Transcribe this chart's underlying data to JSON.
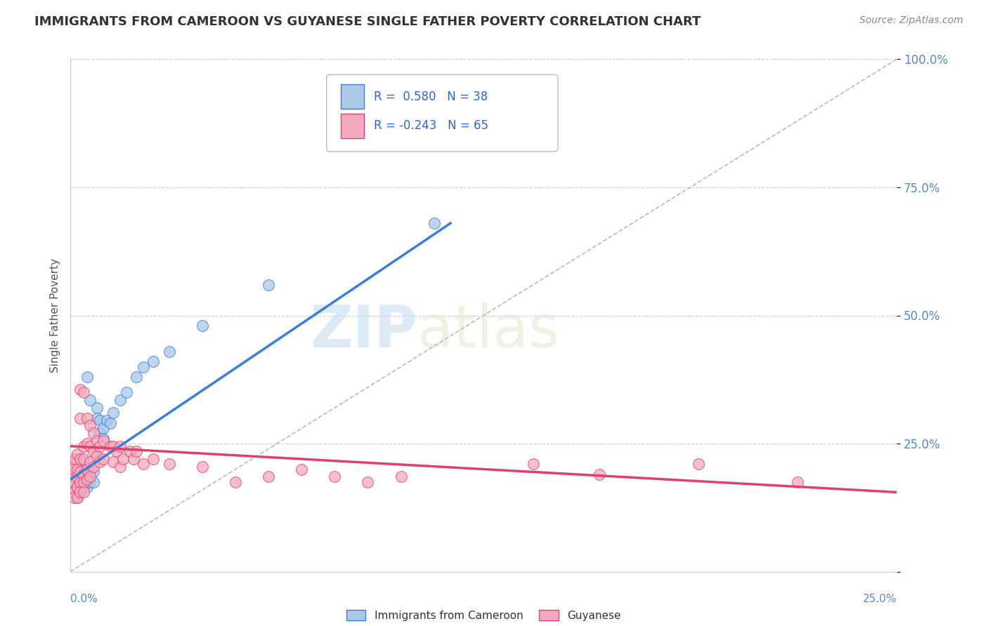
{
  "title": "IMMIGRANTS FROM CAMEROON VS GUYANESE SINGLE FATHER POVERTY CORRELATION CHART",
  "source": "Source: ZipAtlas.com",
  "ylabel": "Single Father Poverty",
  "yticks": [
    0.0,
    0.25,
    0.5,
    0.75,
    1.0
  ],
  "ytick_labels": [
    "",
    "25.0%",
    "50.0%",
    "75.0%",
    "100.0%"
  ],
  "xlim": [
    0.0,
    0.25
  ],
  "ylim": [
    0.0,
    1.0
  ],
  "R_cameroon": 0.58,
  "N_cameroon": 38,
  "R_guyanese": -0.243,
  "N_guyanese": 65,
  "color_cameroon": "#aac8e8",
  "color_guyanese": "#f4aabe",
  "line_color_cameroon": "#3a7fd5",
  "line_color_guyanese": "#e0406a",
  "legend_label_cameroon": "Immigrants from Cameroon",
  "legend_label_guyanese": "Guyanese",
  "cameroon_points": [
    [
      0.0005,
      0.185
    ],
    [
      0.001,
      0.175
    ],
    [
      0.001,
      0.155
    ],
    [
      0.0015,
      0.16
    ],
    [
      0.002,
      0.18
    ],
    [
      0.002,
      0.165
    ],
    [
      0.002,
      0.145
    ],
    [
      0.003,
      0.19
    ],
    [
      0.003,
      0.17
    ],
    [
      0.003,
      0.155
    ],
    [
      0.004,
      0.185
    ],
    [
      0.004,
      0.165
    ],
    [
      0.004,
      0.2
    ],
    [
      0.005,
      0.175
    ],
    [
      0.005,
      0.38
    ],
    [
      0.005,
      0.165
    ],
    [
      0.006,
      0.335
    ],
    [
      0.006,
      0.175
    ],
    [
      0.007,
      0.195
    ],
    [
      0.007,
      0.175
    ],
    [
      0.008,
      0.32
    ],
    [
      0.008,
      0.3
    ],
    [
      0.009,
      0.295
    ],
    [
      0.009,
      0.27
    ],
    [
      0.01,
      0.28
    ],
    [
      0.01,
      0.26
    ],
    [
      0.011,
      0.295
    ],
    [
      0.012,
      0.29
    ],
    [
      0.013,
      0.31
    ],
    [
      0.015,
      0.335
    ],
    [
      0.017,
      0.35
    ],
    [
      0.02,
      0.38
    ],
    [
      0.022,
      0.4
    ],
    [
      0.025,
      0.41
    ],
    [
      0.03,
      0.43
    ],
    [
      0.04,
      0.48
    ],
    [
      0.06,
      0.56
    ],
    [
      0.11,
      0.68
    ]
  ],
  "guyanese_points": [
    [
      0.0005,
      0.21
    ],
    [
      0.0008,
      0.185
    ],
    [
      0.001,
      0.2
    ],
    [
      0.001,
      0.175
    ],
    [
      0.001,
      0.155
    ],
    [
      0.001,
      0.145
    ],
    [
      0.0015,
      0.22
    ],
    [
      0.002,
      0.23
    ],
    [
      0.002,
      0.2
    ],
    [
      0.002,
      0.185
    ],
    [
      0.002,
      0.165
    ],
    [
      0.002,
      0.145
    ],
    [
      0.003,
      0.355
    ],
    [
      0.003,
      0.3
    ],
    [
      0.003,
      0.22
    ],
    [
      0.003,
      0.195
    ],
    [
      0.003,
      0.175
    ],
    [
      0.003,
      0.155
    ],
    [
      0.004,
      0.35
    ],
    [
      0.004,
      0.245
    ],
    [
      0.004,
      0.22
    ],
    [
      0.004,
      0.19
    ],
    [
      0.004,
      0.175
    ],
    [
      0.004,
      0.155
    ],
    [
      0.005,
      0.3
    ],
    [
      0.005,
      0.25
    ],
    [
      0.005,
      0.2
    ],
    [
      0.005,
      0.18
    ],
    [
      0.006,
      0.285
    ],
    [
      0.006,
      0.245
    ],
    [
      0.006,
      0.215
    ],
    [
      0.006,
      0.185
    ],
    [
      0.007,
      0.27
    ],
    [
      0.007,
      0.235
    ],
    [
      0.007,
      0.205
    ],
    [
      0.008,
      0.255
    ],
    [
      0.008,
      0.225
    ],
    [
      0.009,
      0.245
    ],
    [
      0.009,
      0.215
    ],
    [
      0.01,
      0.255
    ],
    [
      0.01,
      0.22
    ],
    [
      0.012,
      0.245
    ],
    [
      0.013,
      0.245
    ],
    [
      0.013,
      0.215
    ],
    [
      0.014,
      0.235
    ],
    [
      0.015,
      0.245
    ],
    [
      0.015,
      0.205
    ],
    [
      0.016,
      0.22
    ],
    [
      0.018,
      0.235
    ],
    [
      0.019,
      0.22
    ],
    [
      0.02,
      0.235
    ],
    [
      0.022,
      0.21
    ],
    [
      0.025,
      0.22
    ],
    [
      0.03,
      0.21
    ],
    [
      0.04,
      0.205
    ],
    [
      0.05,
      0.175
    ],
    [
      0.06,
      0.185
    ],
    [
      0.07,
      0.2
    ],
    [
      0.08,
      0.185
    ],
    [
      0.09,
      0.175
    ],
    [
      0.1,
      0.185
    ],
    [
      0.14,
      0.21
    ],
    [
      0.16,
      0.19
    ],
    [
      0.19,
      0.21
    ],
    [
      0.22,
      0.175
    ]
  ],
  "cam_trendline": [
    0.0,
    0.18,
    0.115,
    0.68
  ],
  "guy_trendline": [
    0.0,
    0.245,
    0.25,
    0.155
  ],
  "watermark_zip": "ZIP",
  "watermark_atlas": "atlas",
  "background_color": "#ffffff"
}
